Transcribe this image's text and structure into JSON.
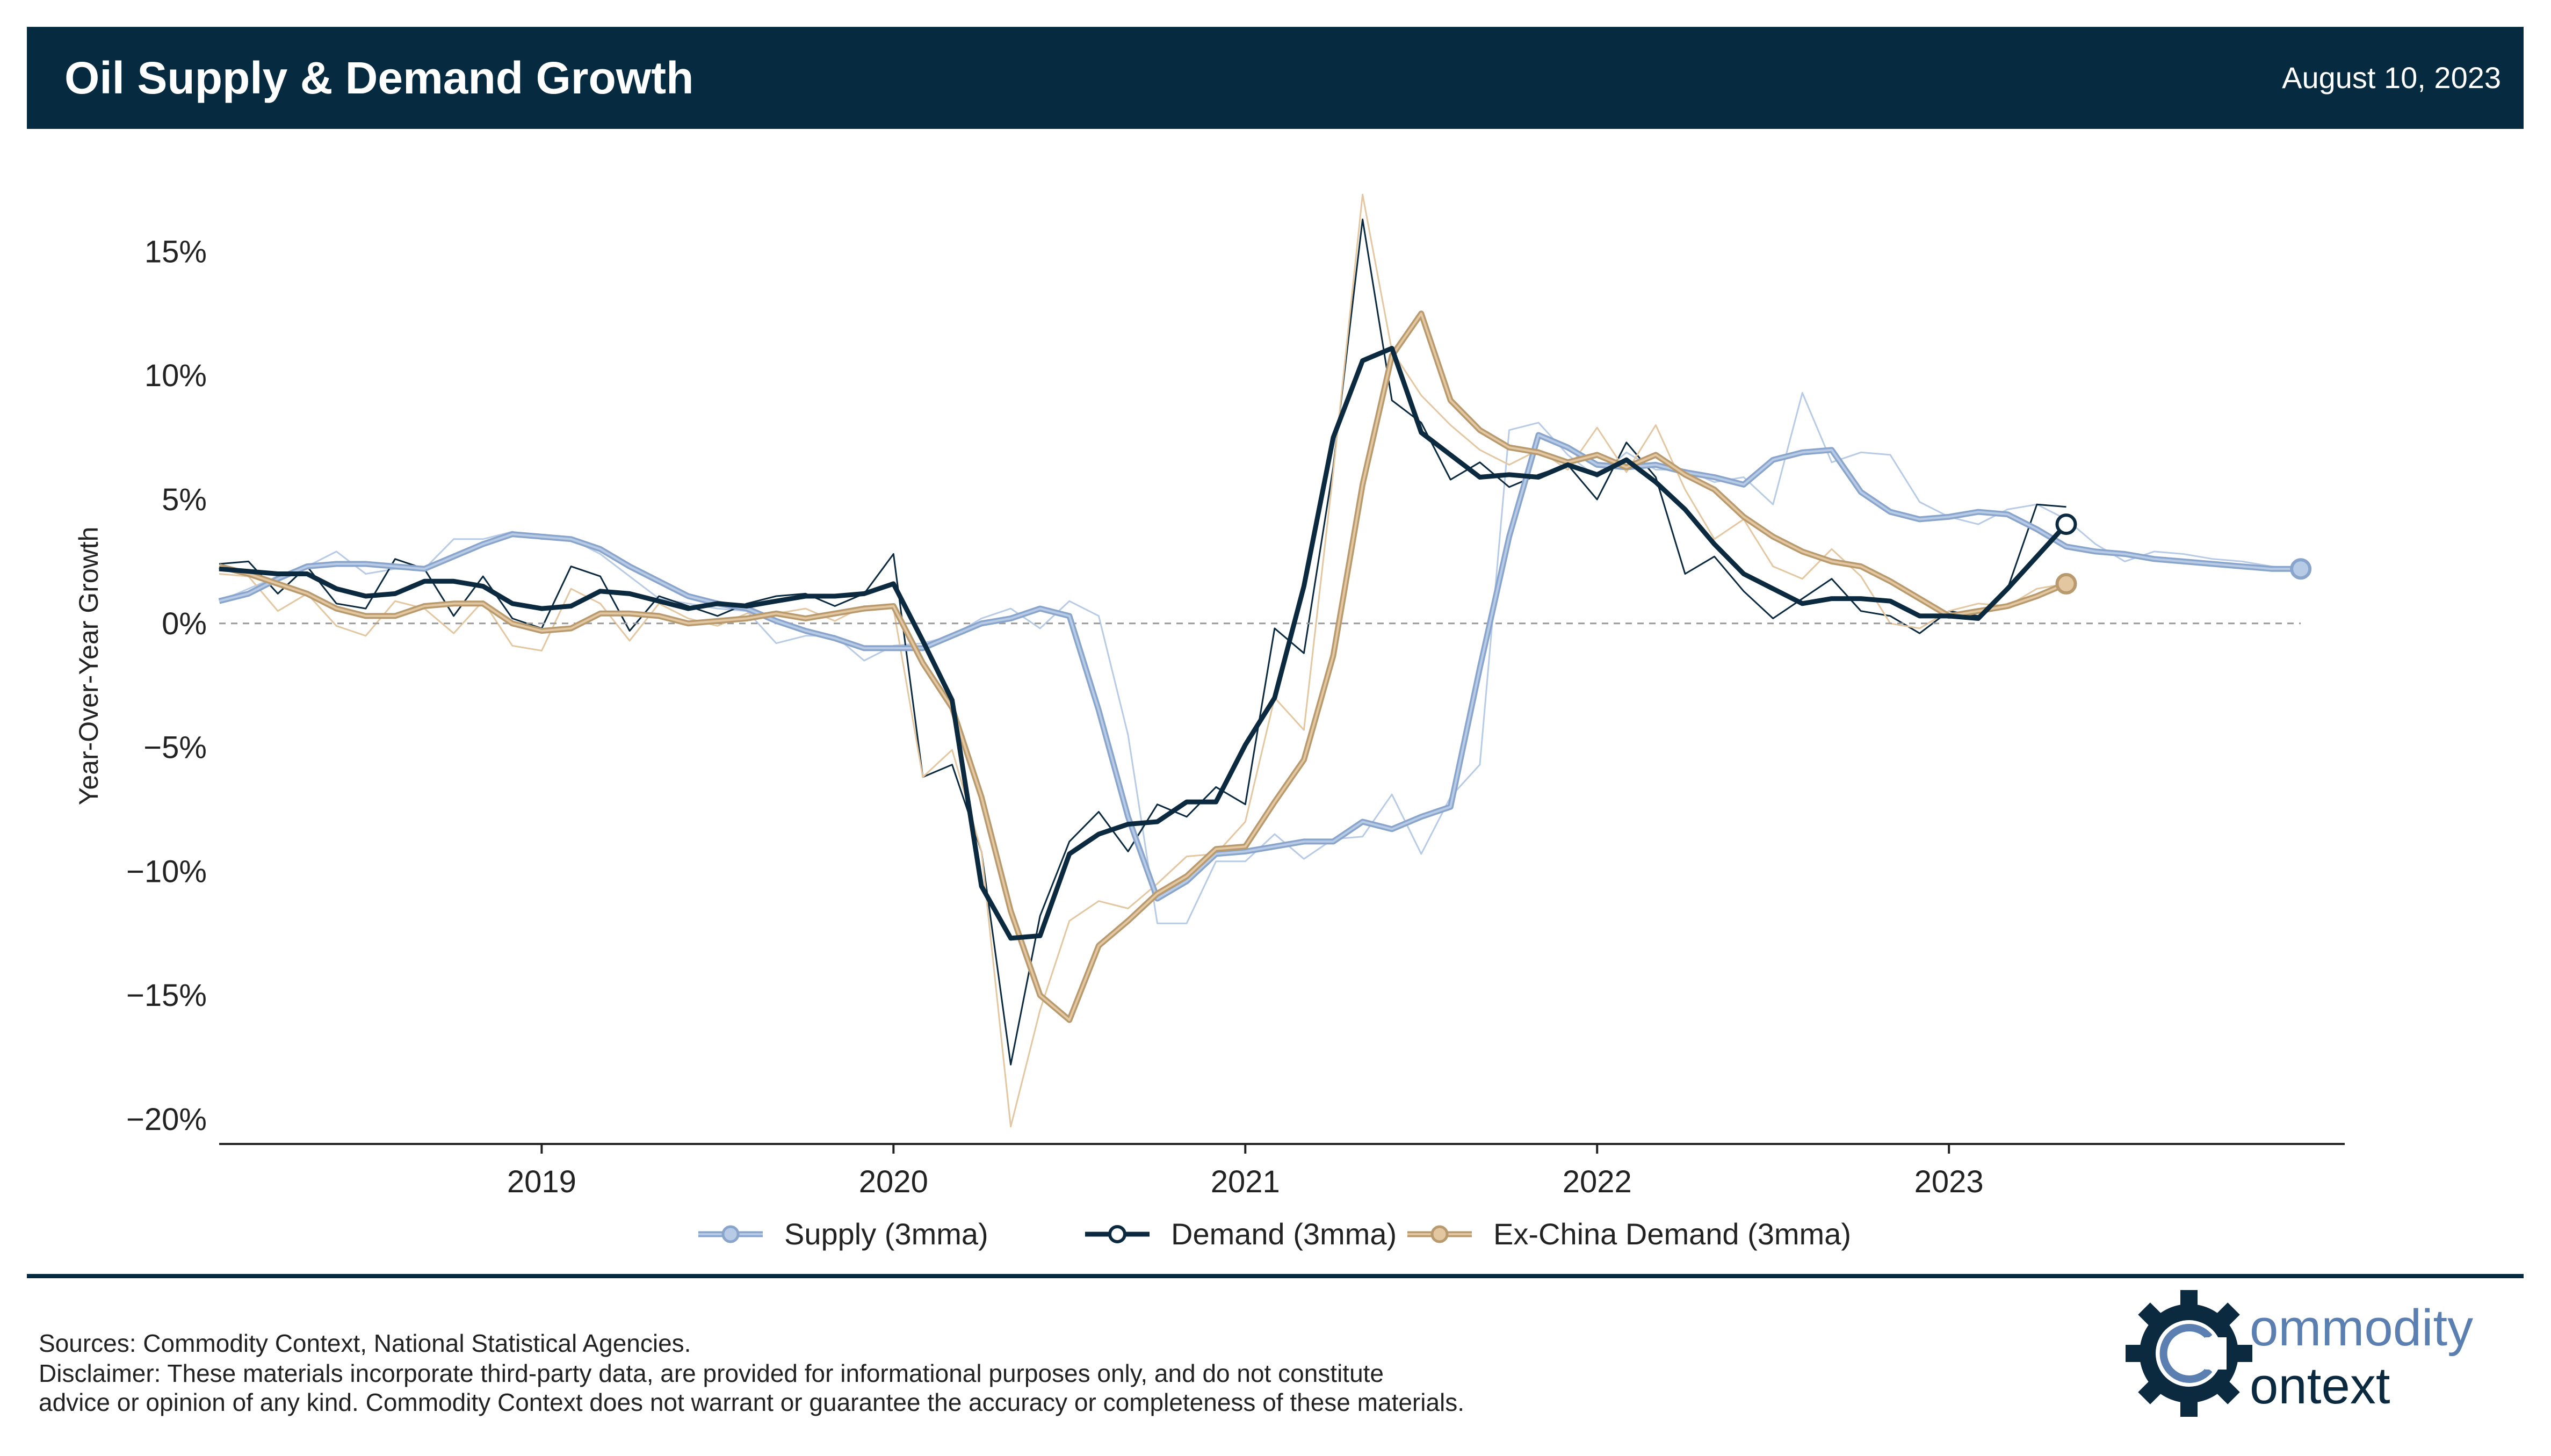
{
  "header": {
    "title": "Oil Supply & Demand Growth",
    "date": "August 10, 2023"
  },
  "footer": {
    "sources": "Sources: Commodity Context, National Statistical Agencies.",
    "disclaimer_line1": "Disclaimer: These materials incorporate third-party data, are provided for informational purposes only, and do not constitute",
    "disclaimer_line2": "advice or opinion of any kind. Commodity Context does not warrant or guarantee the accuracy or completeness of these materials."
  },
  "logo": {
    "line1": "ommodity",
    "line2": "ontext",
    "icon": "gear-c-icon"
  },
  "chart_data": {
    "type": "line",
    "title": "Oil Supply & Demand Growth",
    "ylabel": "Year-Over-Year Growth",
    "xlabel": "",
    "x_start": "2018-02",
    "ylim": [
      -21,
      18
    ],
    "yticks": [
      15,
      10,
      5,
      0,
      -5,
      -10,
      -15,
      -20
    ],
    "ytick_labels": [
      "15%",
      "10%",
      "5%",
      "0%",
      "−5%",
      "−10%",
      "−15%",
      "−20%"
    ],
    "xticks": [
      "2019",
      "2020",
      "2021",
      "2022",
      "2023"
    ],
    "zero_line": true,
    "grid": false,
    "legend_position": "bottom-center",
    "series": [
      {
        "name": "Supply (3mma)",
        "color": "#8aa5cc",
        "raw_color": "#b8cbe6",
        "marker": "circle",
        "raw_values": [
          0.9,
          1.4,
          1.9,
          2.3,
          2.9,
          2.0,
          2.2,
          2.2,
          3.4,
          3.4,
          3.7,
          3.4,
          3.4,
          2.8,
          1.9,
          1.0,
          0.8,
          0.6,
          0.5,
          -0.8,
          -0.5,
          -0.5,
          -1.5,
          -0.9,
          -0.8,
          -0.5,
          0.2,
          0.6,
          -0.2,
          0.9,
          0.3,
          -4.5,
          -12.1,
          -12.1,
          -9.6,
          -9.6,
          -8.5,
          -9.5,
          -8.7,
          -8.6,
          -6.9,
          -9.3,
          -7.0,
          -5.7,
          7.8,
          8.1,
          6.8,
          5.9,
          6.9,
          6.2,
          6.2,
          5.7,
          5.9,
          4.8,
          9.3,
          6.5,
          6.9,
          6.8,
          4.9,
          4.3,
          4.0,
          4.6,
          4.8,
          4.2,
          3.2,
          2.5,
          2.9,
          2.8,
          2.6,
          2.5,
          2.3,
          2.2
        ],
        "values": [
          0.9,
          1.2,
          1.8,
          2.3,
          2.4,
          2.4,
          2.3,
          2.2,
          2.7,
          3.2,
          3.6,
          3.5,
          3.4,
          3.0,
          2.3,
          1.7,
          1.1,
          0.8,
          0.6,
          0.1,
          -0.3,
          -0.6,
          -1.0,
          -1.0,
          -1.0,
          -0.5,
          0.0,
          0.2,
          0.6,
          0.3,
          -3.5,
          -7.8,
          -11.1,
          -10.4,
          -9.3,
          -9.2,
          -9.0,
          -8.8,
          -8.8,
          -8.0,
          -8.3,
          -7.8,
          -7.4,
          -1.8,
          3.5,
          7.6,
          7.1,
          6.4,
          6.3,
          6.4,
          6.1,
          5.9,
          5.6,
          6.6,
          6.9,
          7.0,
          5.3,
          4.5,
          4.2,
          4.3,
          4.5,
          4.4,
          3.8,
          3.1,
          2.9,
          2.8,
          2.6,
          2.5,
          2.4,
          2.3,
          2.2,
          2.2
        ]
      },
      {
        "name": "Demand (3mma)",
        "color": "#0b2a40",
        "raw_color": "#0b2a40",
        "marker": "circle",
        "raw_values": [
          2.4,
          2.5,
          1.2,
          2.3,
          0.8,
          0.6,
          2.6,
          2.2,
          0.3,
          1.9,
          0.2,
          -0.2,
          2.3,
          1.9,
          -0.3,
          1.1,
          0.7,
          0.3,
          0.8,
          1.1,
          1.2,
          0.7,
          1.2,
          2.8,
          -6.2,
          -5.7,
          -9.2,
          -17.8,
          -11.8,
          -8.8,
          -7.6,
          -9.2,
          -7.3,
          -7.8,
          -6.6,
          -7.3,
          -0.2,
          -1.2,
          6.3,
          16.3,
          9.0,
          8.1,
          5.8,
          6.5,
          5.5,
          6.0,
          6.4,
          5.0,
          7.3,
          5.9,
          2.0,
          2.7,
          1.3,
          0.2,
          1.0,
          1.8,
          0.5,
          0.3,
          -0.4,
          0.5,
          0.3,
          1.4,
          4.8,
          4.7
        ],
        "values": [
          2.2,
          2.1,
          2.0,
          2.0,
          1.4,
          1.1,
          1.2,
          1.7,
          1.7,
          1.5,
          0.8,
          0.6,
          0.7,
          1.3,
          1.2,
          0.9,
          0.6,
          0.8,
          0.7,
          0.9,
          1.1,
          1.1,
          1.2,
          1.6,
          -0.7,
          -3.1,
          -10.6,
          -12.7,
          -12.6,
          -9.3,
          -8.5,
          -8.1,
          -8.0,
          -7.2,
          -7.2,
          -4.9,
          -3.0,
          1.5,
          7.5,
          10.6,
          11.1,
          7.7,
          6.8,
          5.9,
          6.0,
          5.9,
          6.4,
          6.0,
          6.6,
          5.7,
          4.6,
          3.2,
          2.0,
          1.4,
          0.8,
          1.0,
          1.0,
          0.9,
          0.3,
          0.3,
          0.2,
          1.4,
          2.7,
          4.0
        ]
      },
      {
        "name": "Ex-China Demand (3mma)",
        "color": "#b89a6e",
        "raw_color": "#e3c7a0",
        "marker": "circle",
        "raw_values": [
          2.0,
          1.9,
          0.5,
          1.2,
          -0.1,
          -0.5,
          0.9,
          0.6,
          -0.4,
          0.9,
          -0.9,
          -1.1,
          1.4,
          0.8,
          -0.7,
          0.8,
          0.2,
          -0.1,
          0.4,
          0.4,
          0.6,
          0.1,
          0.7,
          0.6,
          -6.2,
          -5.1,
          -9.2,
          -20.3,
          -15.6,
          -12.0,
          -11.2,
          -11.5,
          -10.5,
          -9.4,
          -9.3,
          -8.0,
          -3.0,
          -4.3,
          6.1,
          17.3,
          11.0,
          9.2,
          8.0,
          7.0,
          6.4,
          7.0,
          6.2,
          7.9,
          6.1,
          8.0,
          5.4,
          3.4,
          4.2,
          2.3,
          1.8,
          3.0,
          1.9,
          0.0,
          -0.2,
          0.5,
          0.8,
          0.7,
          1.4,
          1.6
        ],
        "values": [
          2.3,
          2.0,
          1.6,
          1.2,
          0.6,
          0.3,
          0.3,
          0.7,
          0.8,
          0.8,
          0.0,
          -0.3,
          -0.2,
          0.4,
          0.4,
          0.3,
          0.0,
          0.1,
          0.2,
          0.4,
          0.2,
          0.4,
          0.6,
          0.7,
          -1.6,
          -3.4,
          -7.0,
          -11.6,
          -15.0,
          -16.0,
          -13.0,
          -12.0,
          -10.9,
          -10.2,
          -9.1,
          -9.0,
          -7.2,
          -5.5,
          -1.3,
          5.6,
          10.8,
          12.5,
          9.0,
          7.8,
          7.1,
          6.9,
          6.5,
          6.8,
          6.3,
          6.8,
          6.0,
          5.4,
          4.3,
          3.5,
          2.9,
          2.5,
          2.3,
          1.7,
          1.0,
          0.3,
          0.5,
          0.7,
          1.1,
          1.6
        ]
      }
    ]
  }
}
